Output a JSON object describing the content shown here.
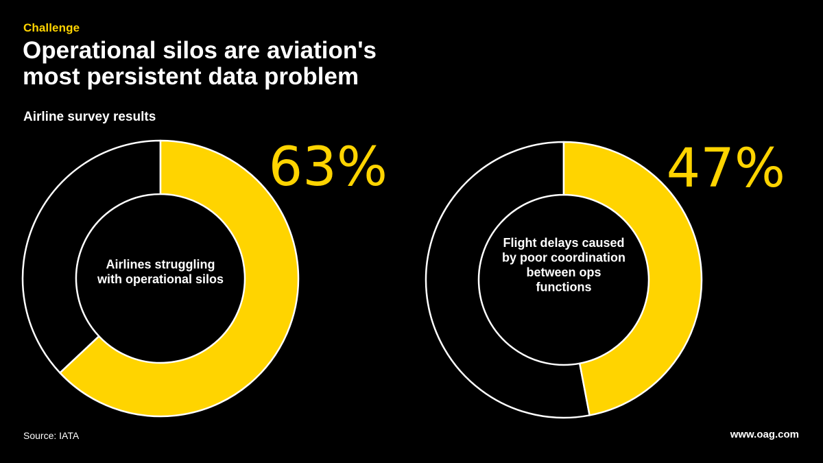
{
  "header": {
    "eyebrow": "Challenge",
    "title_line1": "Operational silos are aviation's",
    "title_line2": "most persistent data problem",
    "subtitle": "Airline survey results"
  },
  "footer": {
    "source": "Source: IATA",
    "site": "www.oag.com"
  },
  "colors": {
    "accent": "#FFD400",
    "background": "#000000",
    "text": "#FFFFFF",
    "ring_outline": "#FFFFFF"
  },
  "chart_data": [
    {
      "type": "pie",
      "style": "donut",
      "value": 63,
      "value_label": "63%",
      "center_label": [
        "Airlines struggling",
        "with operational silos"
      ],
      "slices": [
        {
          "label": "Airlines struggling with operational silos",
          "value": 63,
          "color": "#FFD400"
        },
        {
          "label": "",
          "value": 37,
          "color": "#000000"
        }
      ]
    },
    {
      "type": "pie",
      "style": "donut",
      "value": 47,
      "value_label": "47%",
      "center_label": [
        "Flight delays caused",
        "by poor coordination",
        "between ops",
        "functions"
      ],
      "slices": [
        {
          "label": "Flight delays caused by poor coordination between ops functions",
          "value": 47,
          "color": "#FFD400"
        },
        {
          "label": "",
          "value": 53,
          "color": "#000000"
        }
      ]
    }
  ]
}
